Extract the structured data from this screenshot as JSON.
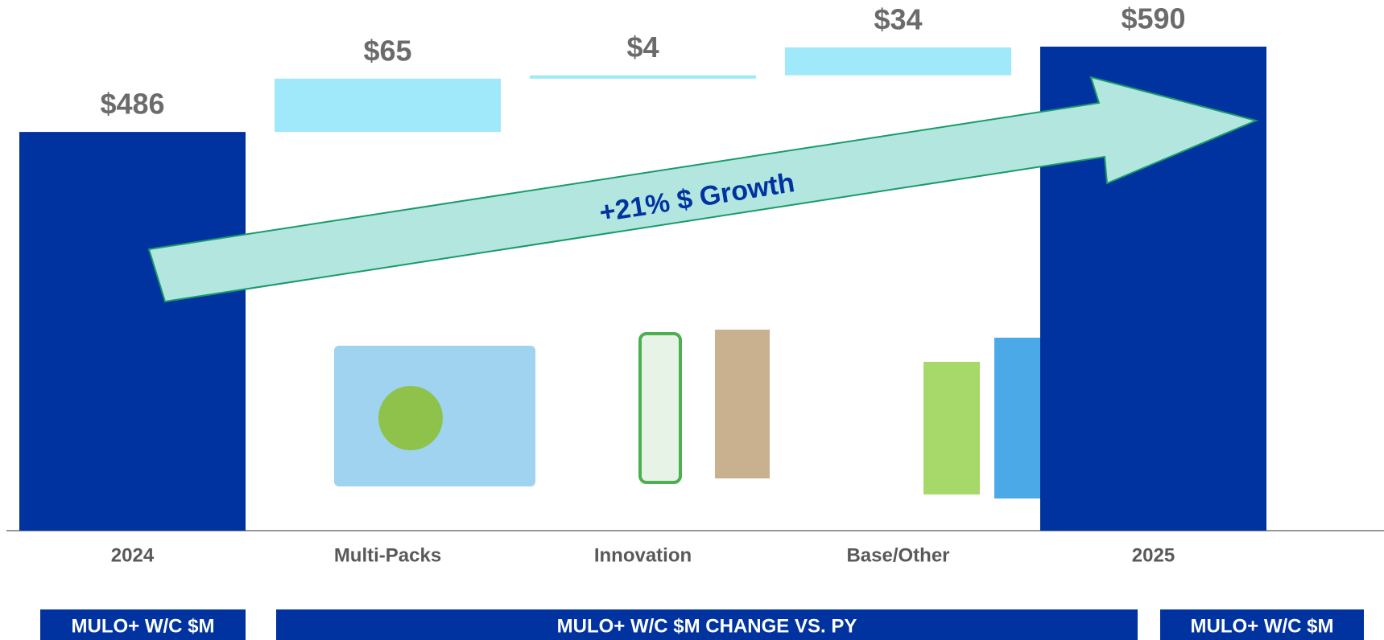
{
  "chart_data": {
    "type": "waterfall",
    "categories": [
      "2024",
      "Multi-Packs",
      "Innovation",
      "Base/Other",
      "2025"
    ],
    "values": [
      486,
      65,
      4,
      34,
      590
    ],
    "value_labels": [
      "$486",
      "$65",
      "$4",
      "$34",
      "$590"
    ],
    "colors": [
      "#0033a0",
      "#a0e9fb",
      "#a0e9fb",
      "#a0e9fb",
      "#0033a0"
    ],
    "annotation": "+21% $ Growth",
    "footer_labels": [
      "MULO+ W/C $M",
      "MULO+ W/C $M CHANGE VS. PY",
      "MULO+ W/C $M"
    ]
  }
}
